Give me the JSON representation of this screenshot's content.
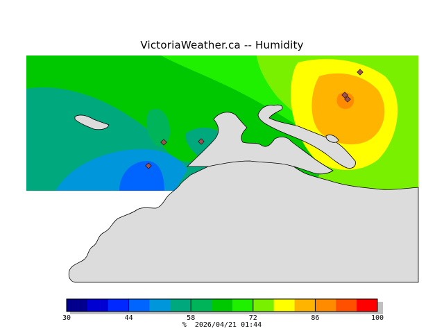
{
  "header": {
    "title": "VictoriaWeather.ca -- Humidity"
  },
  "colors": {
    "land": "#dcdcdc",
    "coast": "#000000"
  },
  "legend": {
    "bands": [
      {
        "from": 30,
        "to": 34,
        "color": "#00008c"
      },
      {
        "from": 34,
        "to": 38,
        "color": "#0000d2"
      },
      {
        "from": 38,
        "to": 44,
        "color": "#0028ff"
      },
      {
        "from": 44,
        "to": 48,
        "color": "#0064ff"
      },
      {
        "from": 48,
        "to": 54,
        "color": "#0096dc"
      },
      {
        "from": 54,
        "to": 58,
        "color": "#00a87e"
      },
      {
        "from": 58,
        "to": 62,
        "color": "#00b45a"
      },
      {
        "from": 62,
        "to": 68,
        "color": "#00c800"
      },
      {
        "from": 68,
        "to": 72,
        "color": "#1ef000"
      },
      {
        "from": 72,
        "to": 76,
        "color": "#78f000"
      },
      {
        "from": 76,
        "to": 82,
        "color": "#ffff00"
      },
      {
        "from": 82,
        "to": 86,
        "color": "#ffb400"
      },
      {
        "from": 86,
        "to": 90,
        "color": "#ff8c00"
      },
      {
        "from": 90,
        "to": 96,
        "color": "#ff5000"
      },
      {
        "from": 96,
        "to": 100,
        "color": "#ff0000"
      }
    ],
    "min": 30,
    "max": 100,
    "ticks": [
      "30",
      "44",
      "58",
      "72",
      "86",
      "100"
    ],
    "units": "%",
    "timestamp": "2026/04/21 01:44"
  }
}
